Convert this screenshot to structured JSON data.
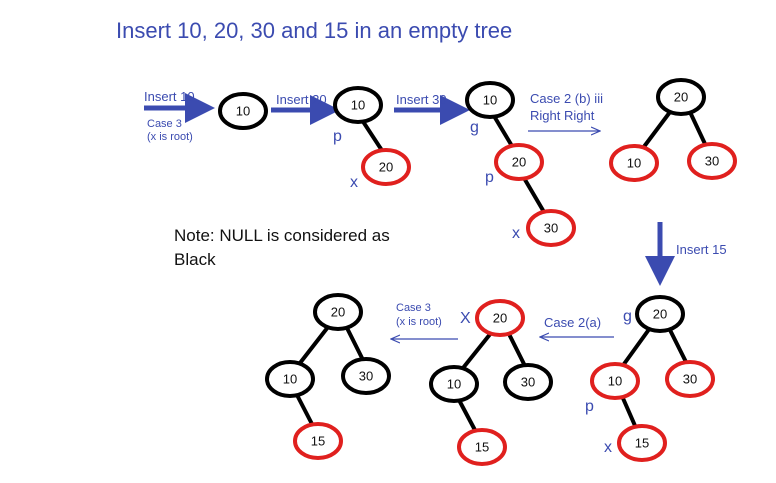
{
  "title": "Insert 10, 20, 30 and 15 in an empty tree",
  "note_line1": "Note: NULL is considered as",
  "note_line2": "Black",
  "steps": {
    "insert10": "Insert 10",
    "case3": "Case 3",
    "xisroot": "(x is root)",
    "insert20": "Insert 20",
    "insert30": "Insert 30",
    "case2biii": "Case 2 (b) iii",
    "rightright": "Right Right",
    "insert15": "Insert 15",
    "case2a": "Case 2(a)",
    "case3b": "Case 3",
    "xisrootb": "(x is root)"
  },
  "roles": {
    "p": "p",
    "g": "g",
    "x": "x",
    "X": "X"
  },
  "nodes": {
    "t1_10": "10",
    "t2_10": "10",
    "t2_20": "20",
    "t3_10": "10",
    "t3_20": "20",
    "t3_30": "30",
    "t4_20": "20",
    "t4_10": "10",
    "t4_30": "30",
    "t5_20": "20",
    "t5_10": "10",
    "t5_30": "30",
    "t5_15": "15",
    "t6_20": "20",
    "t6_10": "10",
    "t6_30": "30",
    "t6_15": "15",
    "t7_20": "20",
    "t7_10": "10",
    "t7_30": "30",
    "t7_15": "15"
  },
  "colors": {
    "black": "#000000",
    "red": "#e0201e",
    "accent": "#3b4bb0"
  }
}
